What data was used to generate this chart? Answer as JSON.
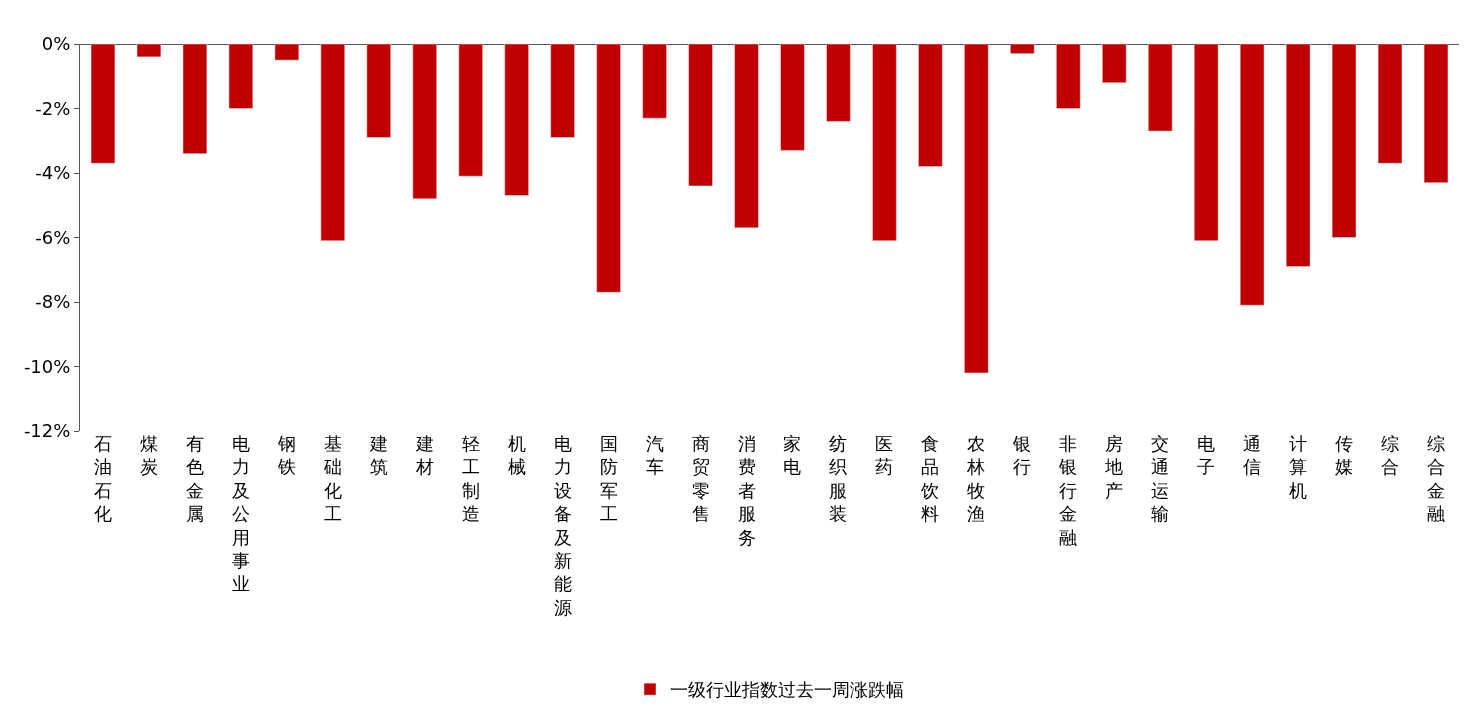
{
  "chart_data": {
    "type": "bar",
    "categories": [
      "石油石化",
      "煤炭",
      "有色金属",
      "电力及公用事业",
      "钢铁",
      "基础化工",
      "建筑",
      "建材",
      "轻工制造",
      "机械",
      "电力设备及新能源",
      "国防军工",
      "汽车",
      "商贸零售",
      "消费者服务",
      "家电",
      "纺织服装",
      "医药",
      "食品饮料",
      "农林牧渔",
      "银行",
      "非银行金融",
      "房地产",
      "交通运输",
      "电子",
      "通信",
      "计算机",
      "传媒",
      "综合",
      "综合金融"
    ],
    "series": [
      {
        "name": "一级行业指数过去一周涨跌幅",
        "color": "#c00000",
        "values": [
          -3.7,
          -0.4,
          -3.4,
          -2.0,
          -0.5,
          -6.1,
          -2.9,
          -4.8,
          -4.1,
          -4.7,
          -2.9,
          -7.7,
          -2.3,
          -4.4,
          -5.7,
          -3.3,
          -2.4,
          -6.1,
          -3.8,
          -10.2,
          -0.3,
          -2.0,
          -1.2,
          -2.7,
          -6.1,
          -8.1,
          -6.9,
          -6.0,
          -3.7,
          -4.3
        ]
      }
    ],
    "ylim": [
      -12,
      0
    ],
    "yticks": [
      {
        "value": 0,
        "label": "0%"
      },
      {
        "value": -2,
        "label": "-2%"
      },
      {
        "value": -4,
        "label": "-4%"
      },
      {
        "value": -6,
        "label": "-6%"
      },
      {
        "value": -8,
        "label": "-8%"
      },
      {
        "value": -10,
        "label": "-10%"
      },
      {
        "value": -12,
        "label": "-12%"
      }
    ],
    "legend": "bottom"
  }
}
